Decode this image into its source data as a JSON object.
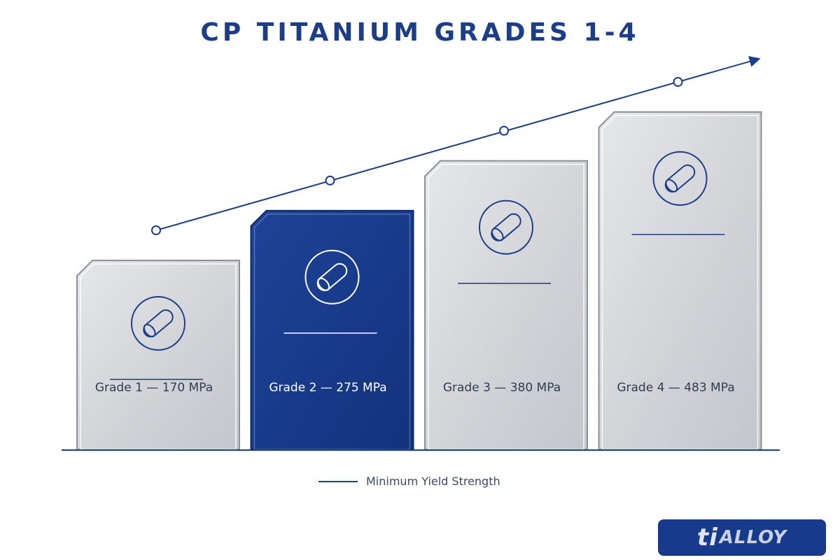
{
  "title": "CP TITANIUM GRADES 1-4",
  "legend": {
    "label": "Minimum Yield Strength"
  },
  "logo": {
    "prefix": "ti",
    "text": "ALLOY"
  },
  "colors": {
    "accent": "#1c3d8a",
    "highlight_block": "#173a8a",
    "silver_block": "#d6d8dc",
    "trend_line": "#1c3d8a"
  },
  "icon": "titanium-rod-icon",
  "chart_data": {
    "type": "bar",
    "title": "CP TITANIUM GRADES 1-4",
    "categories": [
      "Grade 1",
      "Grade 2",
      "Grade 3",
      "Grade 4"
    ],
    "series": [
      {
        "name": "Minimum Yield Strength",
        "values": [
          170,
          275,
          380,
          483
        ]
      }
    ],
    "labels": [
      "Grade 1 — 170 MPa",
      "Grade 2 — 275 MPa",
      "Grade 3 — 380 MPa",
      "Grade 4 — 483 MPa"
    ],
    "unit": "MPa",
    "highlighted_index": 1,
    "trend_line": true,
    "grid": false,
    "legend_position": "bottom-center"
  }
}
